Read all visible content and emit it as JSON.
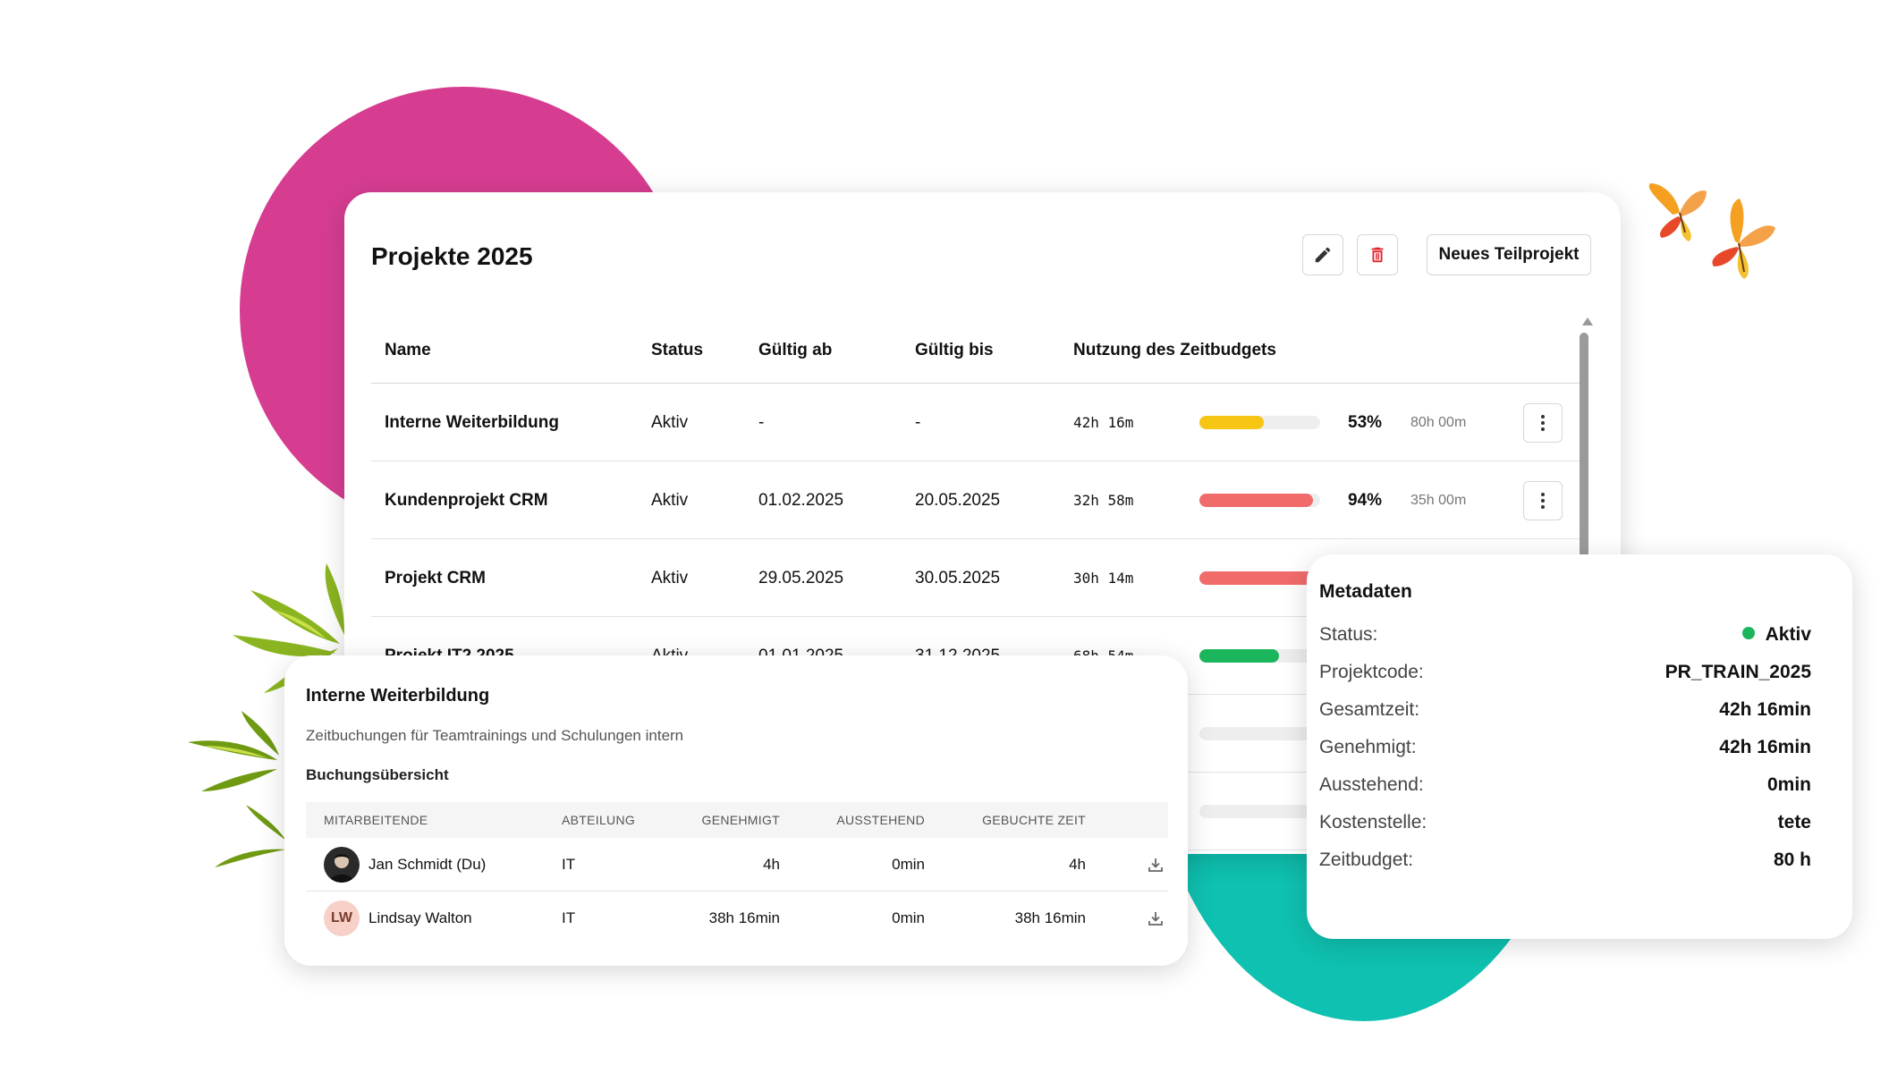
{
  "main": {
    "title": "Projekte 2025",
    "new_button": "Neues Teilprojekt",
    "columns": {
      "name": "Name",
      "status": "Status",
      "valid_from": "Gültig ab",
      "valid_to": "Gültig bis",
      "usage": "Nutzung des Zeitbudgets"
    },
    "rows": [
      {
        "name": "Interne Weiterbildung",
        "status": "Aktiv",
        "valid_from": "-",
        "valid_to": "-",
        "used": "42h 16m",
        "fill": 0.53,
        "color": "#f7c614",
        "pct": "53%",
        "budget": "80h 00m"
      },
      {
        "name": "Kundenprojekt CRM",
        "status": "Aktiv",
        "valid_from": "01.02.2025",
        "valid_to": "20.05.2025",
        "used": "32h 58m",
        "fill": 0.94,
        "color": "#f16b6b",
        "pct": "94%",
        "budget": "35h 00m"
      },
      {
        "name": "Projekt CRM",
        "status": "Aktiv",
        "valid_from": "29.05.2025",
        "valid_to": "30.05.2025",
        "used": "30h 14m",
        "fill": 1.0,
        "color": "#f16b6b",
        "pct": "",
        "budget": ""
      },
      {
        "name": "Projekt IT2 2025",
        "status": "Aktiv",
        "valid_from": "01.01.2025",
        "valid_to": "31.12.2025",
        "used": "68h 54m",
        "fill": 0.66,
        "color": "#1bb55c",
        "pct": "",
        "budget": ""
      },
      {
        "name": "",
        "status": "",
        "valid_from": "",
        "valid_to": "",
        "used": "",
        "fill": 0,
        "color": "#eeeeee",
        "pct": "",
        "budget": ""
      },
      {
        "name": "",
        "status": "",
        "valid_from": "",
        "valid_to": "",
        "used": "",
        "fill": 0,
        "color": "#eeeeee",
        "pct": "",
        "budget": ""
      }
    ]
  },
  "detail": {
    "title": "Interne Weiterbildung",
    "description": "Zeitbuchungen für Teamtrainings und Schulungen intern",
    "section": "Buchungsübersicht",
    "columns": {
      "employee": "MITARBEITENDE",
      "department": "ABTEILUNG",
      "approved": "GENEHMIGT",
      "pending": "AUSSTEHEND",
      "booked": "GEBUCHTE ZEIT"
    },
    "rows": [
      {
        "initials": "",
        "name": "Jan Schmidt (Du)",
        "department": "IT",
        "approved": "4h",
        "pending": "0min",
        "booked": "4h"
      },
      {
        "initials": "LW",
        "name": "Lindsay Walton",
        "department": "IT",
        "approved": "38h 16min",
        "pending": "0min",
        "booked": "38h 16min"
      }
    ]
  },
  "meta": {
    "title": "Metadaten",
    "items": [
      {
        "label": "Status:",
        "value": "Aktiv"
      },
      {
        "label": "Projektcode:",
        "value": "PR_TRAIN_2025"
      },
      {
        "label": "Gesamtzeit:",
        "value": "42h 16min"
      },
      {
        "label": "Genehmigt:",
        "value": "42h 16min"
      },
      {
        "label": "Ausstehend:",
        "value": "0min"
      },
      {
        "label": "Kostenstelle:",
        "value": "tete"
      },
      {
        "label": "Zeitbudget:",
        "value": "80 h"
      }
    ]
  },
  "colors": {
    "status_active": "#1bb55c",
    "delete": "#e0222a"
  },
  "icons": {
    "edit": "pencil-icon",
    "delete": "trash-icon",
    "more": "kebab-icon",
    "download": "download-icon"
  }
}
